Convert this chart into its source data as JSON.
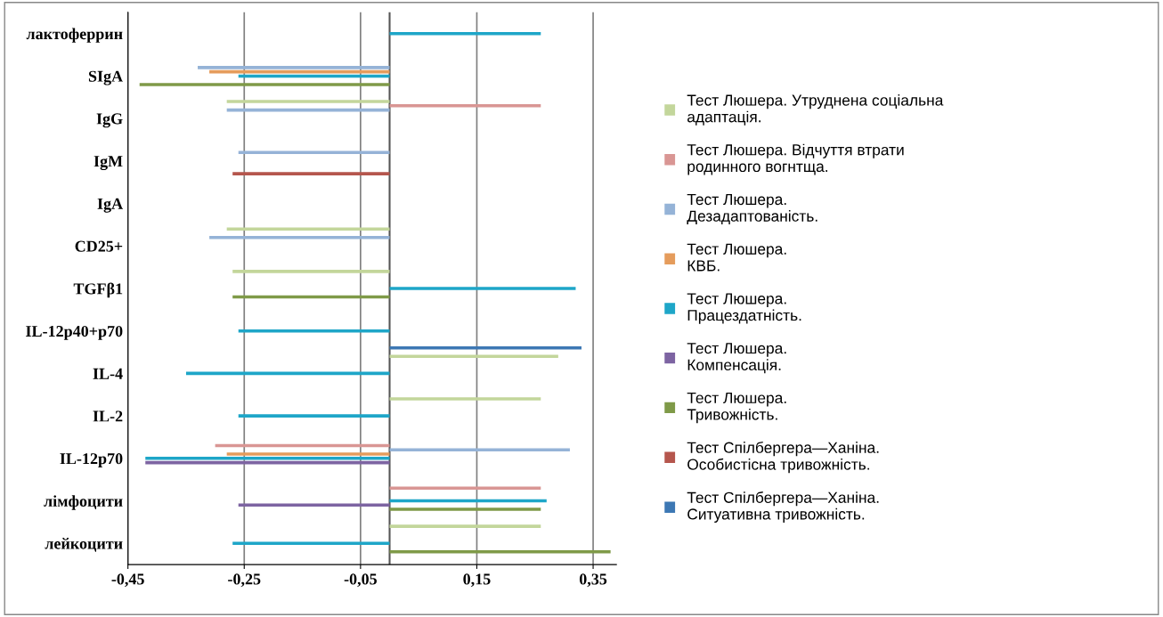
{
  "chart_data": {
    "type": "bar",
    "orientation": "horizontal",
    "categories": [
      "лактоферрин",
      "SIgA",
      "IgG",
      "IgM",
      "IgA",
      "CD25+",
      "TGFβ1",
      "IL-12p40+p70",
      "IL-4",
      "IL-2",
      "IL-12p70",
      "лімфоцити",
      "лейкоцити"
    ],
    "series": [
      {
        "name": "Тест Люшера. Утруднена соціальна\nадаптація.",
        "color": "#c3d69b",
        "values": [
          null,
          null,
          -0.28,
          null,
          null,
          -0.28,
          -0.27,
          null,
          0.29,
          0.26,
          null,
          null,
          0.26
        ]
      },
      {
        "name": "Тест Люшера. Відчуття втрати\nродинного вогнтща.",
        "color": "#d99694",
        "values": [
          null,
          null,
          0.26,
          null,
          null,
          null,
          null,
          null,
          null,
          null,
          -0.3,
          0.26,
          null
        ]
      },
      {
        "name": "Тест Люшера.\nДезадаптованість.",
        "color": "#95b3d7",
        "values": [
          null,
          -0.33,
          -0.28,
          -0.26,
          null,
          -0.31,
          null,
          null,
          null,
          null,
          0.31,
          null,
          null
        ]
      },
      {
        "name": "Тест Люшера.\nКВБ.",
        "color": "#e59c5c",
        "values": [
          null,
          -0.31,
          null,
          null,
          null,
          null,
          null,
          null,
          null,
          null,
          -0.28,
          null,
          null
        ]
      },
      {
        "name": "Тест Люшера.\nПрацездатність.",
        "color": "#1ea6c8",
        "values": [
          0.26,
          -0.26,
          null,
          null,
          null,
          null,
          0.32,
          -0.26,
          -0.35,
          -0.26,
          -0.42,
          0.27,
          -0.27
        ]
      },
      {
        "name": "Тест Люшера.\nКомпенсація.",
        "color": "#7d64a2",
        "values": [
          null,
          null,
          null,
          null,
          null,
          null,
          null,
          null,
          null,
          null,
          -0.42,
          -0.26,
          null
        ]
      },
      {
        "name": "Тест Люшера.\nТривожність.",
        "color": "#7f9a48",
        "values": [
          null,
          -0.43,
          null,
          null,
          null,
          null,
          -0.27,
          null,
          null,
          null,
          null,
          0.26,
          0.38
        ]
      },
      {
        "name": "Тест Спілбергера—Ханіна.\nОсобистісна тривожність.",
        "color": "#b5564d",
        "values": [
          null,
          null,
          null,
          -0.27,
          null,
          null,
          null,
          null,
          null,
          null,
          null,
          null,
          null
        ]
      },
      {
        "name": "Тест Спілбергера—Ханіна.\nСитуативна тривожність.",
        "color": "#3d78b4",
        "values": [
          null,
          null,
          null,
          null,
          null,
          null,
          null,
          0.33,
          null,
          null,
          null,
          null,
          null
        ]
      }
    ],
    "xlim": [
      -0.45,
      0.39
    ],
    "xticks": [
      {
        "value": -0.45,
        "label": "-0,45"
      },
      {
        "value": -0.25,
        "label": "-0,25"
      },
      {
        "value": -0.05,
        "label": "-0,05"
      },
      {
        "value": 0.15,
        "label": "0,15"
      },
      {
        "value": 0.35,
        "label": "0,35"
      }
    ],
    "grid": "x",
    "legend": "right"
  }
}
